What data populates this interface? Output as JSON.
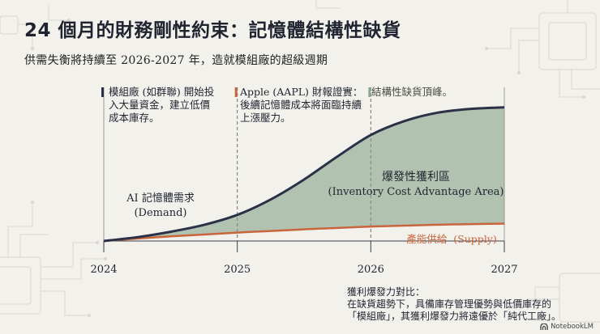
{
  "title": "24 個月的財務剛性約束：記憶體結構性缺貨",
  "subtitle": "供需失衡將持續至 2026-2027 年，造就模組廠的超級週期",
  "colors": {
    "demand": "#2b3248",
    "supply": "#c8653c",
    "area": "#7d9a82",
    "peak_marker": "#8aa890"
  },
  "annotations": [
    {
      "lines": [
        "模組廠 (如群聯) 開始投",
        "入大量資金，建立低價",
        "成本庫存。"
      ],
      "marker_color": "#2b3248"
    },
    {
      "lines": [
        "Apple (AAPL) 財報證實：",
        "後續記憶體成本將面臨持續",
        "上漲壓力。"
      ],
      "marker_color": "#c8653c"
    },
    {
      "lines": [
        "結構性缺貨頂峰。"
      ],
      "marker_color": "#8aa890"
    }
  ],
  "chart_data": {
    "type": "area",
    "x": [
      2024,
      2024.25,
      2024.5,
      2024.75,
      2025,
      2025.25,
      2025.5,
      2025.75,
      2026,
      2026.25,
      2026.5,
      2026.75,
      2027
    ],
    "xticks": [
      "2024",
      "2025",
      "2026",
      "2027"
    ],
    "series": [
      {
        "name": "AI 記憶體需求",
        "name_en": "(Demand)",
        "values": [
          0,
          2.5,
          6,
          10.5,
          17,
          27,
          40,
          55,
          69,
          78,
          83.5,
          86,
          87
        ]
      },
      {
        "name": "產能供給",
        "name_en": "(Supply)",
        "values": [
          0,
          1.6,
          3,
          4.2,
          5.5,
          6.5,
          7.6,
          8.5,
          9.4,
          10,
          10.6,
          11,
          11.3
        ]
      }
    ],
    "area_label": {
      "name": "爆發性獲利區",
      "name_en": "(Inventory Cost Advantage Area)"
    },
    "xlim": [
      2024,
      2027
    ],
    "ylim": [
      0,
      100
    ],
    "grid": false
  },
  "footnote": {
    "heading": "獲利爆發力對比：",
    "lines": [
      "在缺貨趨勢下，具備庫存管理優勢與低價庫存的",
      "「模組廠」，其獲利爆發力將遠優於「純代工廠」。"
    ]
  },
  "logo": {
    "text": "NotebookLM",
    "icon": "notebook-logo-icon"
  }
}
